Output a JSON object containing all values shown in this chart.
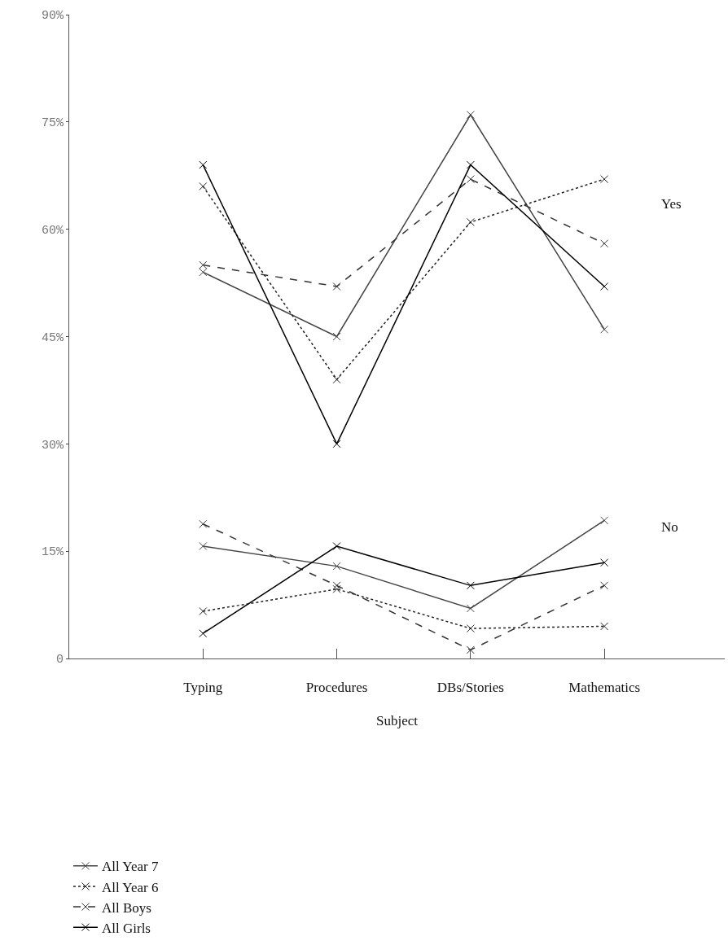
{
  "chart_data": {
    "type": "line",
    "xlabel": "Subject",
    "categories": [
      "Typing",
      "Procedures",
      "DBs/Stories",
      "Mathematics"
    ],
    "series": [
      {
        "name": "All Year 7",
        "color": "#444444",
        "line_style": "solid",
        "values": [
          54,
          45,
          76,
          46
        ]
      },
      {
        "name": "All Year 6",
        "color": "#222222",
        "line_style": "dotted",
        "values": [
          66,
          39,
          61,
          67
        ]
      },
      {
        "name": "All Boys",
        "color": "#333333",
        "line_style": "dashed",
        "values": [
          55,
          52,
          67,
          58
        ]
      },
      {
        "name": "All Girls",
        "color": "#000000",
        "line_style": "solid",
        "values": [
          69,
          30,
          69,
          52
        ]
      },
      {
        "color": "#444444",
        "line_style": "solid",
        "values": [
          15.7,
          12.9,
          7,
          19.3
        ]
      },
      {
        "color": "#222222",
        "line_style": "dotted",
        "values": [
          6.6,
          9.7,
          4.2,
          4.5
        ]
      },
      {
        "color": "#333333",
        "line_style": "dashed",
        "values": [
          18.8,
          10.2,
          1.2,
          10.2
        ]
      },
      {
        "color": "#000000",
        "line_style": "solid",
        "values": [
          3.5,
          15.7,
          10.2,
          13.4
        ]
      }
    ],
    "ylim": [
      0,
      90
    ],
    "yticks": [
      {
        "value": 0,
        "label": "0"
      },
      {
        "value": 15,
        "label": "15%"
      },
      {
        "value": 30,
        "label": "30%"
      },
      {
        "value": 45,
        "label": "45%"
      },
      {
        "value": 60,
        "label": "60%"
      },
      {
        "value": 75,
        "label": "75%"
      },
      {
        "value": 90,
        "label": "90%"
      }
    ],
    "annotations": [
      "Yes",
      "No"
    ],
    "marker": "cross",
    "grid": false,
    "legend": "bottom left"
  }
}
